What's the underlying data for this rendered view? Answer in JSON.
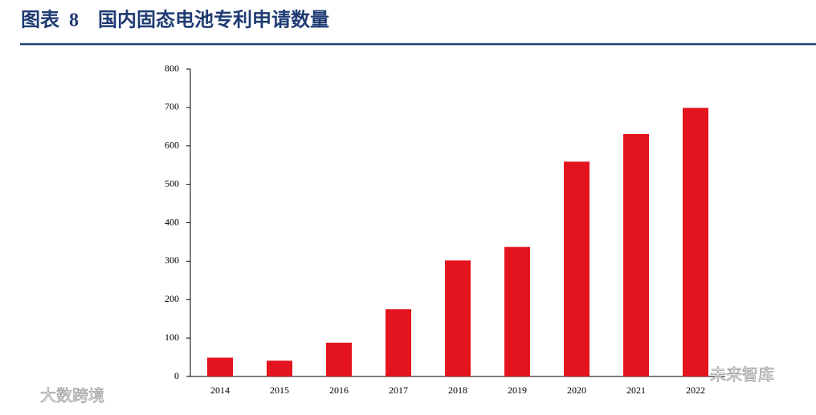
{
  "chart_data": {
    "type": "bar",
    "title": "图表  8    国内固态电池专利申请数量",
    "categories": [
      "2014",
      "2015",
      "2016",
      "2017",
      "2018",
      "2019",
      "2020",
      "2021",
      "2022"
    ],
    "values": [
      49,
      41,
      88,
      175,
      302,
      337,
      559,
      631,
      699
    ],
    "color": "#e3141e",
    "ylim": [
      0,
      800
    ],
    "yticks": [
      0,
      100,
      200,
      300,
      400,
      500,
      600,
      700,
      800
    ],
    "grid": false,
    "watermarks": [
      "大数跨境",
      "未来智库"
    ]
  }
}
